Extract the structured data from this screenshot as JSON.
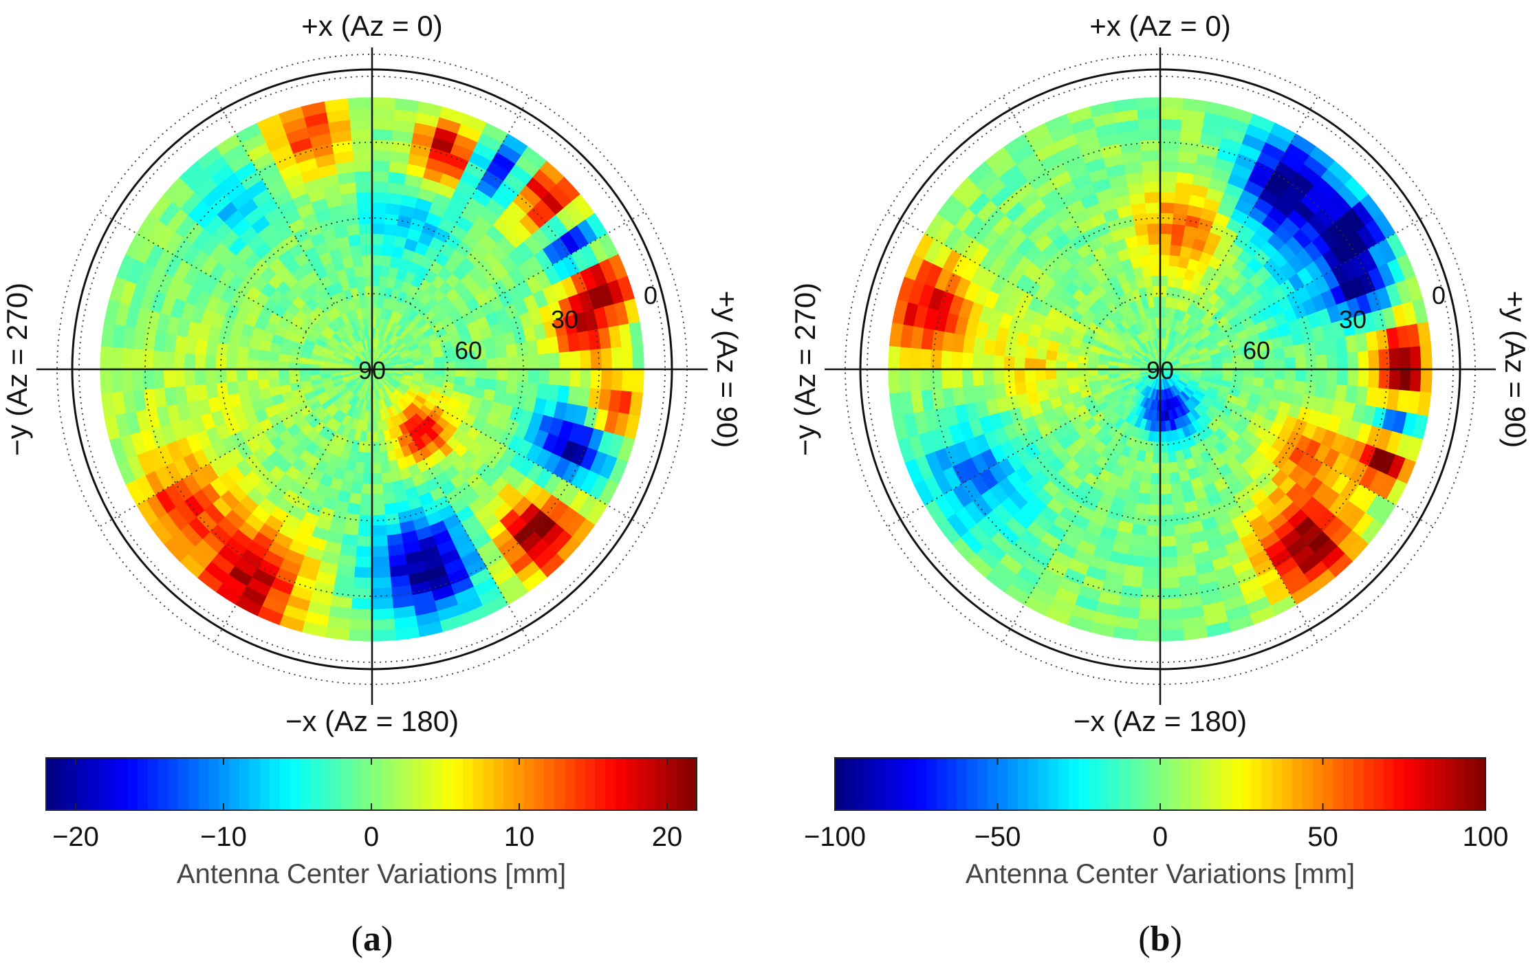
{
  "chart_data": [
    {
      "type": "heatmap",
      "subtype": "polar-skyplot",
      "panel_letter": "a",
      "labels": {
        "top": "+x (Az = 0)",
        "bottom": "−x (Az = 180)",
        "left": "−y (Az = 270)",
        "right": "+y (Az = 90)"
      },
      "elevation_rings": [
        "0",
        "30",
        "60",
        "90"
      ],
      "colorbar": {
        "range": [
          -22,
          22
        ],
        "ticks": [
          -20,
          -10,
          0,
          10,
          20
        ],
        "tick_labels": [
          "−20",
          "−10",
          "0",
          "10",
          "20"
        ],
        "label": "Antenna Center Variations [mm]",
        "colormap": "jet"
      },
      "min_elevation_deg": -5,
      "features": [
        {
          "az": 20,
          "el": 10,
          "value": 22,
          "sigma_deg": 9
        },
        {
          "az": 32,
          "el": 8,
          "value": -22,
          "sigma_deg": 8
        },
        {
          "az": 45,
          "el": 5,
          "value": 20,
          "sigma_deg": 9
        },
        {
          "az": 58,
          "el": 8,
          "value": -20,
          "sigma_deg": 7
        },
        {
          "az": 70,
          "el": 5,
          "value": 22,
          "sigma_deg": 8
        },
        {
          "az": 80,
          "el": 15,
          "value": 16,
          "sigma_deg": 8
        },
        {
          "az": 100,
          "el": 5,
          "value": 18,
          "sigma_deg": 8
        },
        {
          "az": 110,
          "el": 15,
          "value": -22,
          "sigma_deg": 10
        },
        {
          "az": 135,
          "el": 8,
          "value": 22,
          "sigma_deg": 11
        },
        {
          "az": 165,
          "el": 18,
          "value": -22,
          "sigma_deg": 13
        },
        {
          "az": 140,
          "el": 62,
          "value": 17,
          "sigma_deg": 8
        },
        {
          "az": 210,
          "el": 5,
          "value": 20,
          "sigma_deg": 14
        },
        {
          "az": 235,
          "el": 8,
          "value": 14,
          "sigma_deg": 12
        },
        {
          "az": 345,
          "el": 5,
          "value": 15,
          "sigma_deg": 10
        },
        {
          "az": 15,
          "el": 35,
          "value": -8,
          "sigma_deg": 12
        },
        {
          "az": 320,
          "el": 15,
          "value": -8,
          "sigma_deg": 10
        },
        {
          "az": 260,
          "el": 30,
          "value": 3,
          "sigma_deg": 20
        }
      ]
    },
    {
      "type": "heatmap",
      "subtype": "polar-skyplot",
      "panel_letter": "b",
      "labels": {
        "top": "+x (Az = 0)",
        "bottom": "−x (Az = 180)",
        "left": "−y (Az = 270)",
        "right": "+y (Az = 90)"
      },
      "elevation_rings": [
        "0",
        "30",
        "60",
        "90"
      ],
      "colorbar": {
        "range": [
          -100,
          100
        ],
        "ticks": [
          -100,
          -50,
          0,
          50,
          100
        ],
        "tick_labels": [
          "−100",
          "−50",
          "0",
          "50",
          "100"
        ],
        "label": "Antenna Center Variations [mm]",
        "colormap": "jet"
      },
      "min_elevation_deg": -5,
      "features": [
        {
          "az": 35,
          "el": 12,
          "value": -100,
          "sigma_deg": 13
        },
        {
          "az": 55,
          "el": 8,
          "value": -100,
          "sigma_deg": 8
        },
        {
          "az": 68,
          "el": 15,
          "value": -80,
          "sigma_deg": 7
        },
        {
          "az": 85,
          "el": 5,
          "value": 80,
          "sigma_deg": 7
        },
        {
          "az": 95,
          "el": 5,
          "value": 95,
          "sigma_deg": 7
        },
        {
          "az": 102,
          "el": 5,
          "value": -90,
          "sigma_deg": 6
        },
        {
          "az": 112,
          "el": 5,
          "value": 100,
          "sigma_deg": 7
        },
        {
          "az": 140,
          "el": 10,
          "value": 100,
          "sigma_deg": 12
        },
        {
          "az": 120,
          "el": 30,
          "value": 55,
          "sigma_deg": 10
        },
        {
          "az": 10,
          "el": 40,
          "value": 55,
          "sigma_deg": 12
        },
        {
          "az": 285,
          "el": 5,
          "value": 80,
          "sigma_deg": 13
        },
        {
          "az": 240,
          "el": 15,
          "value": -50,
          "sigma_deg": 14
        },
        {
          "az": 270,
          "el": 45,
          "value": 30,
          "sigma_deg": 12
        },
        {
          "az": 170,
          "el": 75,
          "value": -85,
          "sigma_deg": 7
        },
        {
          "az": 60,
          "el": 30,
          "value": -30,
          "sigma_deg": 14
        }
      ]
    }
  ]
}
